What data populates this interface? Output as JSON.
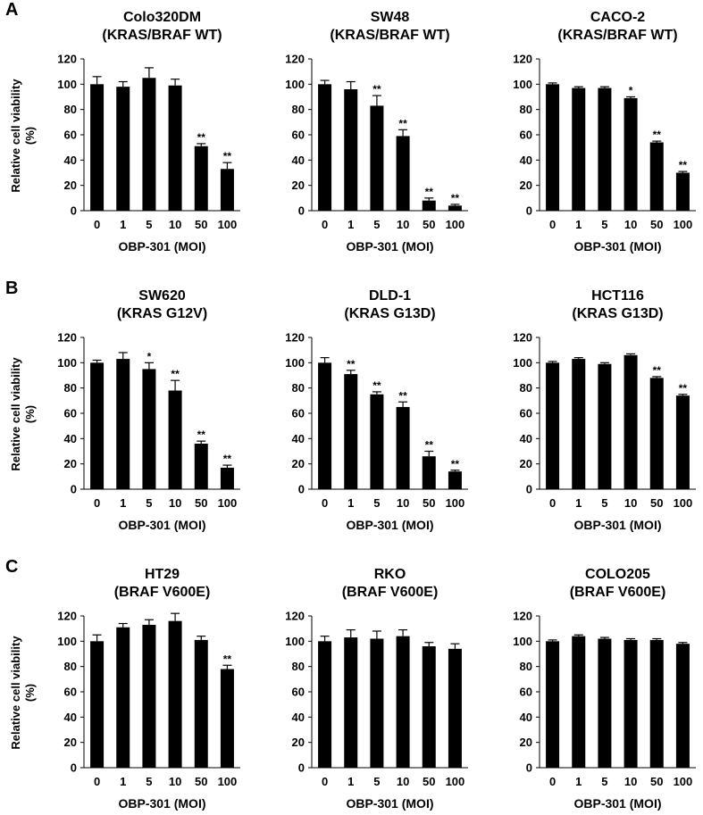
{
  "figure": {
    "rows": [
      {
        "label": "A"
      },
      {
        "label": "B"
      },
      {
        "label": "C"
      }
    ]
  },
  "shared": {
    "ylabel_line1": "Relative cell viability",
    "ylabel_line2": "(%)",
    "xlabel": "OBP-301 (MOI)",
    "categories": [
      "0",
      "1",
      "5",
      "10",
      "50",
      "100"
    ],
    "y_ticks": [
      0,
      20,
      40,
      60,
      80,
      100,
      120
    ],
    "ylim": [
      0,
      120
    ],
    "bar_color": "#000000"
  },
  "chart_data": [
    {
      "type": "bar",
      "title_line1": "Colo320DM",
      "title_line2": "(KRAS/BRAF WT)",
      "xlabel": "OBP-301 (MOI)",
      "ylabel": "Relative cell viability (%)",
      "ylim": [
        0,
        120
      ],
      "categories": [
        "0",
        "1",
        "5",
        "10",
        "50",
        "100"
      ],
      "values": [
        100,
        98,
        105,
        99,
        51,
        33
      ],
      "errors": [
        6,
        4,
        8,
        5,
        2,
        5
      ],
      "significance": [
        "",
        "",
        "",
        "",
        "**",
        "**"
      ]
    },
    {
      "type": "bar",
      "title_line1": "SW48",
      "title_line2": "(KRAS/BRAF WT)",
      "xlabel": "OBP-301 (MOI)",
      "ylabel": "Relative cell viability (%)",
      "ylim": [
        0,
        120
      ],
      "categories": [
        "0",
        "1",
        "5",
        "10",
        "50",
        "100"
      ],
      "values": [
        100,
        96,
        83,
        59,
        8,
        4
      ],
      "errors": [
        3,
        6,
        8,
        5,
        2,
        1
      ],
      "significance": [
        "",
        "",
        "**",
        "**",
        "**",
        "**"
      ]
    },
    {
      "type": "bar",
      "title_line1": "CACO-2",
      "title_line2": "(KRAS/BRAF WT)",
      "xlabel": "OBP-301 (MOI)",
      "ylabel": "Relative cell viability (%)",
      "ylim": [
        0,
        120
      ],
      "categories": [
        "0",
        "1",
        "5",
        "10",
        "50",
        "100"
      ],
      "values": [
        100,
        97,
        97,
        89,
        54,
        30
      ],
      "errors": [
        1,
        1,
        1,
        1,
        1,
        1
      ],
      "significance": [
        "",
        "",
        "",
        "*",
        "**",
        "**"
      ]
    },
    {
      "type": "bar",
      "title_line1": "SW620",
      "title_line2": "(KRAS G12V)",
      "xlabel": "OBP-301 (MOI)",
      "ylabel": "Relative cell viability (%)",
      "ylim": [
        0,
        120
      ],
      "categories": [
        "0",
        "1",
        "5",
        "10",
        "50",
        "100"
      ],
      "values": [
        100,
        103,
        95,
        78,
        36,
        17
      ],
      "errors": [
        2,
        5,
        5,
        8,
        2,
        2
      ],
      "significance": [
        "",
        "",
        "*",
        "**",
        "**",
        "**"
      ]
    },
    {
      "type": "bar",
      "title_line1": "DLD-1",
      "title_line2": "(KRAS G13D)",
      "xlabel": "OBP-301 (MOI)",
      "ylabel": "Relative cell viability (%)",
      "ylim": [
        0,
        120
      ],
      "categories": [
        "0",
        "1",
        "5",
        "10",
        "50",
        "100"
      ],
      "values": [
        100,
        91,
        75,
        65,
        26,
        14
      ],
      "errors": [
        4,
        3,
        2,
        4,
        4,
        1
      ],
      "significance": [
        "",
        "**",
        "**",
        "**",
        "**",
        "**"
      ]
    },
    {
      "type": "bar",
      "title_line1": "HCT116",
      "title_line2": "(KRAS G13D)",
      "xlabel": "OBP-301 (MOI)",
      "ylabel": "Relative cell viability (%)",
      "ylim": [
        0,
        120
      ],
      "categories": [
        "0",
        "1",
        "5",
        "10",
        "50",
        "100"
      ],
      "values": [
        100,
        103,
        99,
        106,
        88,
        74
      ],
      "errors": [
        1,
        1,
        1,
        1,
        1,
        1
      ],
      "significance": [
        "",
        "",
        "",
        "",
        "**",
        "**"
      ]
    },
    {
      "type": "bar",
      "title_line1": "HT29",
      "title_line2": "(BRAF V600E)",
      "xlabel": "OBP-301 (MOI)",
      "ylabel": "Relative cell viability (%)",
      "ylim": [
        0,
        120
      ],
      "categories": [
        "0",
        "1",
        "5",
        "10",
        "50",
        "100"
      ],
      "values": [
        100,
        111,
        113,
        116,
        101,
        78
      ],
      "errors": [
        5,
        3,
        4,
        6,
        3,
        3
      ],
      "significance": [
        "",
        "",
        "",
        "",
        "",
        "**"
      ]
    },
    {
      "type": "bar",
      "title_line1": "RKO",
      "title_line2": "(BRAF V600E)",
      "xlabel": "OBP-301 (MOI)",
      "ylabel": "Relative cell viability (%)",
      "ylim": [
        0,
        120
      ],
      "categories": [
        "0",
        "1",
        "5",
        "10",
        "50",
        "100"
      ],
      "values": [
        100,
        103,
        102,
        104,
        96,
        94
      ],
      "errors": [
        4,
        6,
        6,
        5,
        3,
        4
      ],
      "significance": [
        "",
        "",
        "",
        "",
        "",
        ""
      ]
    },
    {
      "type": "bar",
      "title_line1": "COLO205",
      "title_line2": "(BRAF V600E)",
      "xlabel": "OBP-301 (MOI)",
      "ylabel": "Relative cell viability (%)",
      "ylim": [
        0,
        120
      ],
      "categories": [
        "0",
        "1",
        "5",
        "10",
        "50",
        "100"
      ],
      "values": [
        100,
        104,
        102,
        101,
        101,
        98
      ],
      "errors": [
        1,
        1,
        1,
        1,
        1,
        1
      ],
      "significance": [
        "",
        "",
        "",
        "",
        "",
        ""
      ]
    }
  ]
}
